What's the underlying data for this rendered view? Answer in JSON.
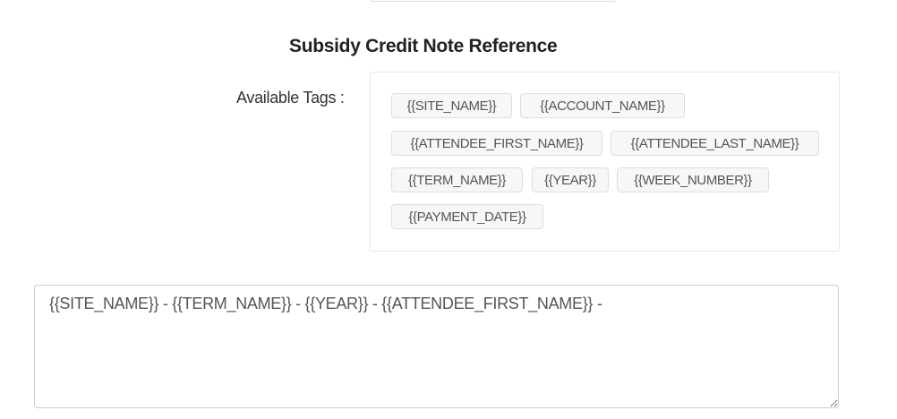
{
  "section_title": "Subsidy Credit Note Reference",
  "available_tags_label": "Available Tags :",
  "tags": [
    "{{SITE_NAME}}",
    "{{ACCOUNT_NAME}}",
    "{{ATTENDEE_FIRST_NAME}}",
    "{{ATTENDEE_LAST_NAME}}",
    "{{TERM_NAME}}",
    "{{YEAR}}",
    "{{WEEK_NUMBER}}",
    "{{PAYMENT_DATE}}"
  ],
  "reference_value": "{{SITE_NAME}} - {{TERM_NAME}} - {{YEAR}} - {{ATTENDEE_FIRST_NAME}} -"
}
